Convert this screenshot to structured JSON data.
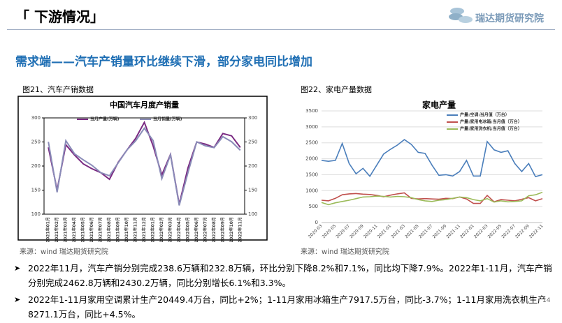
{
  "header": {
    "title": "「 下游情况」",
    "logo": "瑞达期货研究院"
  },
  "subtitle": "需求端——汽车产销量环比继续下滑，部分家电同比增加",
  "captions": [
    "图21、汽车产销数据",
    "图22、家电产量数据"
  ],
  "sources": [
    "来源：wind   瑞达期货研究院",
    "来源：wind   瑞达期货研究院"
  ],
  "bullets": [
    "2022年11月，汽车产销分别完成238.6万辆和232.8万辆，环比分别下降8.2%和7.1%，同比均下降7.9%。2022年1-11月，汽车产销分别完成2462.8万辆和2430.2万辆，同比分别增长6.1%和3.3%。",
    "2022年1-11月家用空调累计生产20449.4万台，同比+2%；1-11月家用冰箱生产7917.5万台，同比-3.7%；1-11月家用洗衣机生产8271.1万台，同比+4.5%。"
  ],
  "page_number": "14",
  "chart_data": [
    {
      "type": "line",
      "title": "中国汽车月度产销量",
      "categories": [
        "2021年01月",
        "2021年02月",
        "2021年03月",
        "2021年04月",
        "2021年05月",
        "2021年06月",
        "2021年07月",
        "2021年08月",
        "2021年09月",
        "2021年10月",
        "2021年11月",
        "2021年12月",
        "2022年01月",
        "2022年02月",
        "2022年03月",
        "2022年04月",
        "2022年05月",
        "2022年06月",
        "2022年07月",
        "2022年08月",
        "2022年09月",
        "2022年10月",
        "2022年11月"
      ],
      "series": [
        {
          "name": "当月产量(万辆)",
          "color": "#7a2a82",
          "values": [
            238.8,
            150.3,
            244.2,
            222.8,
            204.4,
            194.3,
            186.3,
            172.5,
            207.7,
            233.1,
            257.2,
            290.7,
            242.1,
            181.4,
            224.1,
            120.5,
            196.1,
            249.9,
            245.5,
            238.7,
            267.5,
            262.8,
            238.6
          ]
        },
        {
          "name": "当月销量(万辆)",
          "color": "#8a8cb8",
          "values": [
            250.3,
            145.5,
            252.6,
            225.2,
            212.8,
            201.5,
            186.4,
            179.9,
            206.7,
            233.2,
            252.2,
            278.6,
            253.1,
            173.7,
            223.4,
            118.1,
            186.2,
            250.2,
            242.0,
            238.3,
            261.0,
            250.6,
            232.8
          ]
        }
      ],
      "ylim": [
        100,
        300
      ],
      "yticks": [
        100,
        150,
        200,
        250,
        300
      ],
      "y2lim": [
        100,
        300
      ],
      "y2ticks": [
        100,
        150,
        200,
        250,
        300
      ],
      "grid": false
    },
    {
      "type": "line",
      "title": "家电产量",
      "categories": [
        "2020-03",
        null,
        "2020-05",
        null,
        "2020-07",
        null,
        "2020-09",
        null,
        "2020-11",
        null,
        "2021-01",
        null,
        "2021-03",
        null,
        "2021-05",
        null,
        "2021-07",
        null,
        "2021-09",
        null,
        "2021-11",
        null,
        "2022-01",
        null,
        "2022-03",
        null,
        "2022-05",
        null,
        "2022-07",
        null,
        "2022-09",
        null,
        "2022-11"
      ],
      "series": [
        {
          "name": "产量:空调:当月值（万台）",
          "color": "#4a7ebb",
          "values": [
            1950,
            1920,
            1950,
            2480,
            1850,
            1530,
            1700,
            1450,
            1800,
            2150,
            2300,
            2430,
            2600,
            2450,
            2200,
            2170,
            1800,
            1480,
            1500,
            1460,
            1600,
            1950,
            1460,
            1460,
            2540,
            2280,
            2200,
            2250,
            1850,
            1600,
            1850,
            1440,
            1500
          ]
        },
        {
          "name": "产量:家用电冰箱:当月值（万台）",
          "color": "#c0504d",
          "values": [
            700,
            680,
            760,
            870,
            900,
            910,
            890,
            880,
            850,
            810,
            860,
            900,
            930,
            760,
            740,
            750,
            740,
            730,
            760,
            750,
            800,
            740,
            600,
            600,
            850,
            650,
            720,
            700,
            680,
            730,
            780,
            680,
            750
          ]
        },
        {
          "name": "产量:家用洗衣机:当月值（万台）",
          "color": "#9bbb59",
          "values": [
            630,
            560,
            620,
            660,
            700,
            750,
            800,
            810,
            830,
            820,
            800,
            820,
            810,
            780,
            720,
            680,
            660,
            700,
            720,
            760,
            800,
            780,
            720,
            680,
            750,
            640,
            680,
            650,
            660,
            680,
            840,
            870,
            950
          ]
        }
      ],
      "ylim": [
        0,
        3500
      ],
      "yticks": [
        0,
        500,
        1000,
        1500,
        2000,
        2500,
        3000,
        3500
      ],
      "grid": true
    }
  ]
}
